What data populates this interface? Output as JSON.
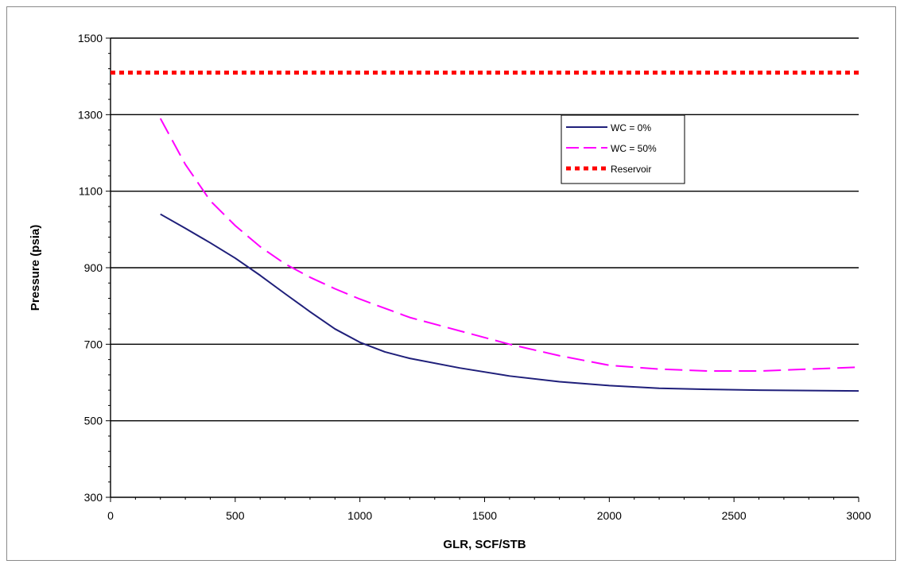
{
  "chart_data": {
    "type": "line",
    "xlabel": "GLR, SCF/STB",
    "ylabel": "Pressure (psia)",
    "xlim": [
      0,
      3000
    ],
    "ylim": [
      300,
      1500
    ],
    "xticks": [
      0,
      500,
      1000,
      1500,
      2000,
      2500,
      3000
    ],
    "yticks": [
      300,
      500,
      700,
      900,
      1100,
      1300,
      1500
    ],
    "grid": "horizontal",
    "legend_position": "top-right",
    "series": [
      {
        "name": "WC = 0%",
        "color": "#1f1f7a",
        "style": "solid",
        "x": [
          200,
          300,
          400,
          500,
          600,
          700,
          800,
          900,
          1000,
          1100,
          1200,
          1400,
          1600,
          1800,
          2000,
          2200,
          2400,
          2600,
          2800,
          3000
        ],
        "y": [
          1040,
          1003,
          965,
          925,
          880,
          832,
          785,
          740,
          705,
          680,
          663,
          638,
          617,
          602,
          592,
          585,
          582,
          580,
          579,
          578
        ]
      },
      {
        "name": "WC = 50%",
        "color": "#ff00ff",
        "style": "dashed",
        "x": [
          200,
          300,
          400,
          500,
          600,
          700,
          800,
          900,
          1000,
          1200,
          1400,
          1600,
          1800,
          2000,
          2200,
          2400,
          2600,
          2800,
          3000
        ],
        "y": [
          1290,
          1170,
          1075,
          1010,
          955,
          910,
          875,
          845,
          818,
          770,
          735,
          700,
          670,
          645,
          635,
          630,
          630,
          635,
          640
        ]
      },
      {
        "name": "Reservoir",
        "color": "#ff0000",
        "style": "dotted",
        "x": [
          0,
          3000
        ],
        "y": [
          1410,
          1410
        ]
      }
    ]
  }
}
